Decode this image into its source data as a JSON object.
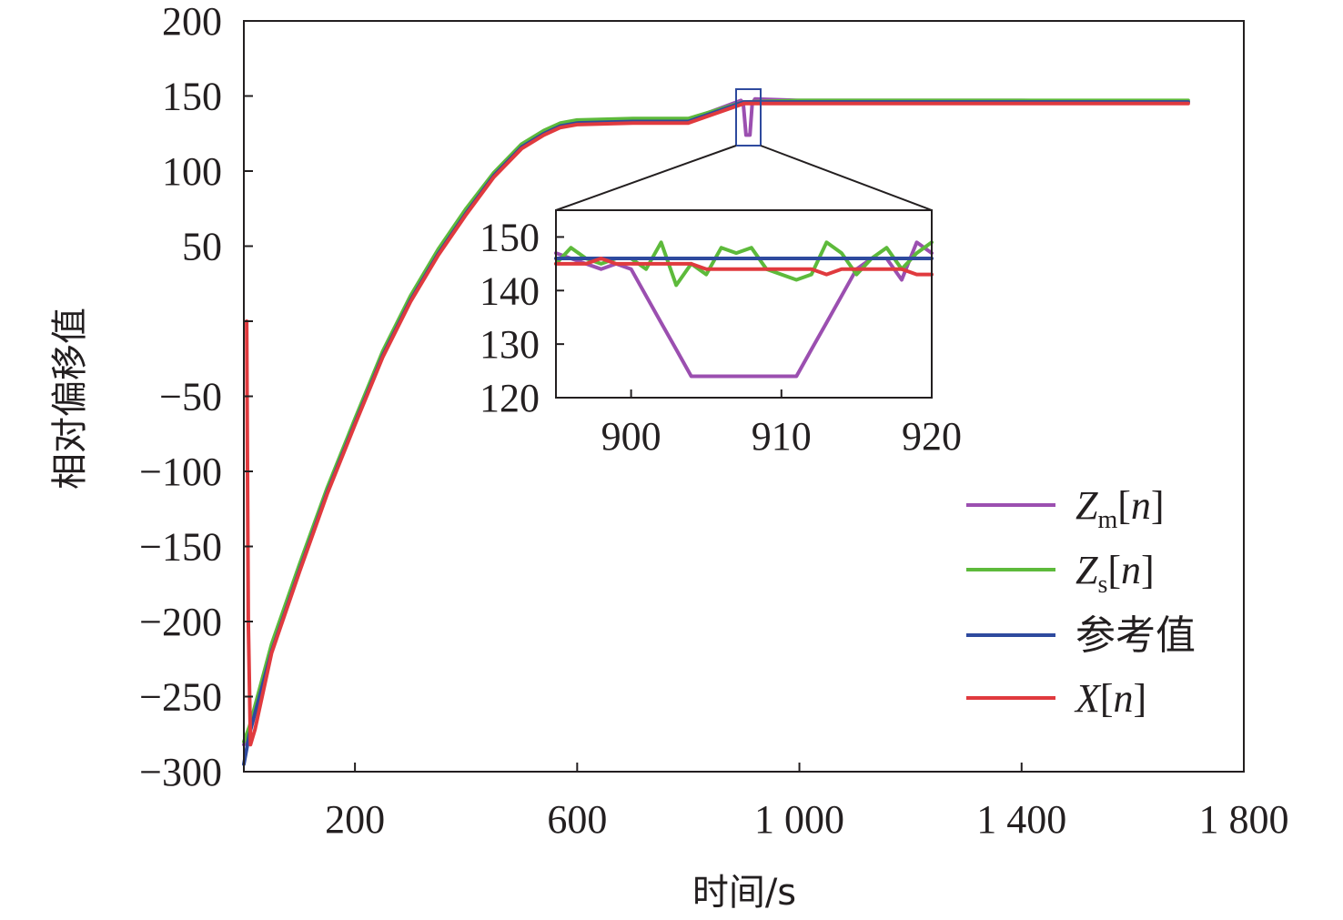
{
  "chart_data": {
    "type": "line",
    "xlabel": "时间/s",
    "ylabel": "相对偏移值",
    "xlim": [
      0,
      1800
    ],
    "ylim": [
      -300,
      200
    ],
    "x_ticks": [
      200,
      600,
      1000,
      1400,
      1800
    ],
    "x_tick_labels": [
      "200",
      "600",
      "1 000",
      "1 400",
      "1 800"
    ],
    "y_ticks": [
      200,
      150,
      100,
      50,
      -50,
      -100,
      -150,
      -200,
      -250,
      -300
    ],
    "y_tick_labels": [
      "200",
      "150",
      "100",
      "50",
      "−50",
      "−100",
      "−150",
      "−200",
      "−250",
      "−300"
    ],
    "grid": false,
    "legend_position": "bottom-right",
    "series": [
      {
        "name": "Zm[n]",
        "legend_main": "Z",
        "legend_sub": "m",
        "legend_tail": "[n]",
        "color": "#9b4fb0",
        "x": [
          0,
          10,
          50,
          100,
          150,
          200,
          250,
          300,
          350,
          400,
          450,
          500,
          540,
          570,
          600,
          700,
          800,
          895,
          899,
          904,
          908,
          911,
          915,
          920,
          1000,
          1200,
          1400,
          1700
        ],
        "y": [
          -282,
          -272,
          -218,
          -165,
          -113,
          -67,
          -22,
          15,
          46,
          73,
          98,
          117,
          126,
          131,
          133,
          134,
          134,
          147,
          145,
          124,
          124,
          124,
          145,
          148,
          147,
          147,
          147,
          146
        ]
      },
      {
        "name": "Zs[n]",
        "legend_main": "Z",
        "legend_sub": "s",
        "legend_tail": "[n]",
        "color": "#5dba3b",
        "x": [
          0,
          10,
          50,
          100,
          150,
          200,
          250,
          300,
          350,
          400,
          450,
          500,
          540,
          570,
          600,
          700,
          800,
          900,
          1000,
          1200,
          1400,
          1700
        ],
        "y": [
          -280,
          -270,
          -215,
          -162,
          -111,
          -65,
          -20,
          17,
          48,
          75,
          99,
          118,
          127,
          132,
          134,
          135,
          135,
          146,
          147,
          147,
          147,
          147
        ]
      },
      {
        "name": "参考值",
        "legend_main": "参考值",
        "legend_sub": "",
        "legend_tail": "",
        "color": "#2e4a9e",
        "x": [
          0,
          10,
          50,
          100,
          150,
          200,
          250,
          300,
          350,
          400,
          450,
          500,
          540,
          570,
          600,
          700,
          800,
          900,
          1000,
          1200,
          1400,
          1700
        ],
        "y": [
          -295,
          -275,
          -220,
          -166,
          -114,
          -68,
          -23,
          14,
          45,
          72,
          97,
          116,
          125,
          130,
          132,
          133,
          133,
          146,
          146,
          146,
          146,
          146
        ]
      },
      {
        "name": "X[n]",
        "legend_main": "X",
        "legend_sub": "",
        "legend_tail": "[n]",
        "color": "#e03a3e",
        "x": [
          5,
          8,
          12,
          20,
          50,
          100,
          150,
          200,
          250,
          300,
          350,
          400,
          450,
          500,
          540,
          570,
          600,
          700,
          800,
          900,
          1000,
          1200,
          1400,
          1700
        ],
        "y": [
          0,
          -200,
          -282,
          -272,
          -221,
          -167,
          -115,
          -69,
          -24,
          13,
          44,
          71,
          96,
          115,
          124,
          129,
          131,
          132,
          132,
          145,
          145,
          145,
          145,
          145
        ]
      }
    ],
    "inset": {
      "xlim": [
        895,
        920
      ],
      "ylim": [
        120,
        155
      ],
      "x_ticks": [
        900,
        910,
        920
      ],
      "y_ticks": [
        150,
        140,
        130,
        120
      ],
      "series": [
        {
          "name": "Zm[n]",
          "color": "#9b4fb0",
          "x": [
            895,
            896,
            897,
            898,
            899,
            900,
            901,
            902,
            903,
            904,
            905,
            906,
            907,
            908,
            909,
            910,
            911,
            912,
            913,
            914,
            915,
            916,
            917,
            918,
            919,
            920
          ],
          "y": [
            147,
            146,
            145,
            144,
            145,
            144,
            139,
            134,
            129,
            124,
            124,
            124,
            124,
            124,
            124,
            124,
            124,
            129,
            134,
            139,
            144,
            146,
            146,
            142,
            149,
            147
          ]
        },
        {
          "name": "Zs[n]",
          "color": "#5dba3b",
          "x": [
            895,
            896,
            897,
            898,
            899,
            900,
            901,
            902,
            903,
            904,
            905,
            906,
            907,
            908,
            909,
            910,
            911,
            912,
            913,
            914,
            915,
            916,
            917,
            918,
            919,
            920
          ],
          "y": [
            145,
            148,
            146,
            145,
            146,
            146,
            144,
            149,
            141,
            145,
            143,
            148,
            147,
            148,
            144,
            143,
            142,
            143,
            149,
            147,
            143,
            146,
            148,
            144,
            147,
            149
          ]
        },
        {
          "name": "参考值",
          "color": "#2e4a9e",
          "x": [
            895,
            920
          ],
          "y": [
            146,
            146
          ]
        },
        {
          "name": "X[n]",
          "color": "#e03a3e",
          "x": [
            895,
            896,
            897,
            898,
            899,
            900,
            901,
            902,
            903,
            904,
            905,
            906,
            907,
            908,
            909,
            910,
            911,
            912,
            913,
            914,
            915,
            916,
            917,
            918,
            919,
            920
          ],
          "y": [
            145,
            145,
            145,
            146,
            145,
            145,
            145,
            145,
            145,
            145,
            144,
            144,
            144,
            144,
            144,
            144,
            144,
            144,
            143,
            144,
            144,
            144,
            144,
            144,
            143,
            143
          ]
        }
      ]
    }
  }
}
